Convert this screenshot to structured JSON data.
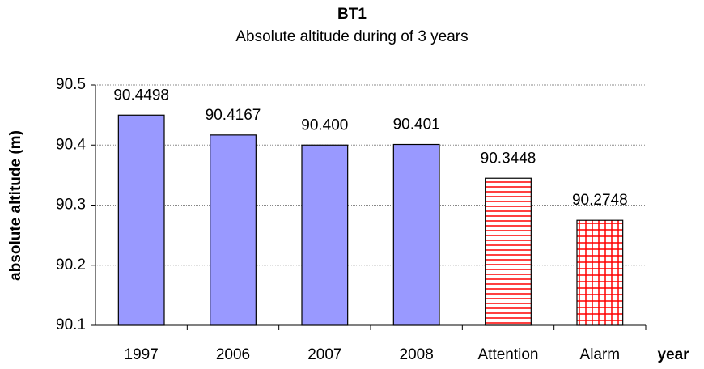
{
  "chart_data": {
    "type": "bar",
    "title": "BT1",
    "subtitle": "Absolute altitude during of 3 years",
    "y_label": "absolute altitude (m)",
    "x_label": "year",
    "categories": [
      "1997",
      "2006",
      "2007",
      "2008",
      "Attention",
      "Alarm"
    ],
    "values": [
      90.4498,
      90.4167,
      90.4,
      90.401,
      90.3448,
      90.2748
    ],
    "value_labels": [
      "90.4498",
      "90.4167",
      "90.400",
      "90.401",
      "90.3448",
      "90.2748"
    ],
    "colors": [
      "#9999ff",
      "#9999ff",
      "#9999ff",
      "#9999ff",
      "#ff0000",
      "#ff0000"
    ],
    "patterns": [
      "solid",
      "solid",
      "solid",
      "solid",
      "horizontal",
      "grid"
    ],
    "ylim": [
      90.1,
      90.5
    ],
    "yticks": [
      90.1,
      90.2,
      90.3,
      90.4,
      90.5
    ],
    "grid": true
  }
}
